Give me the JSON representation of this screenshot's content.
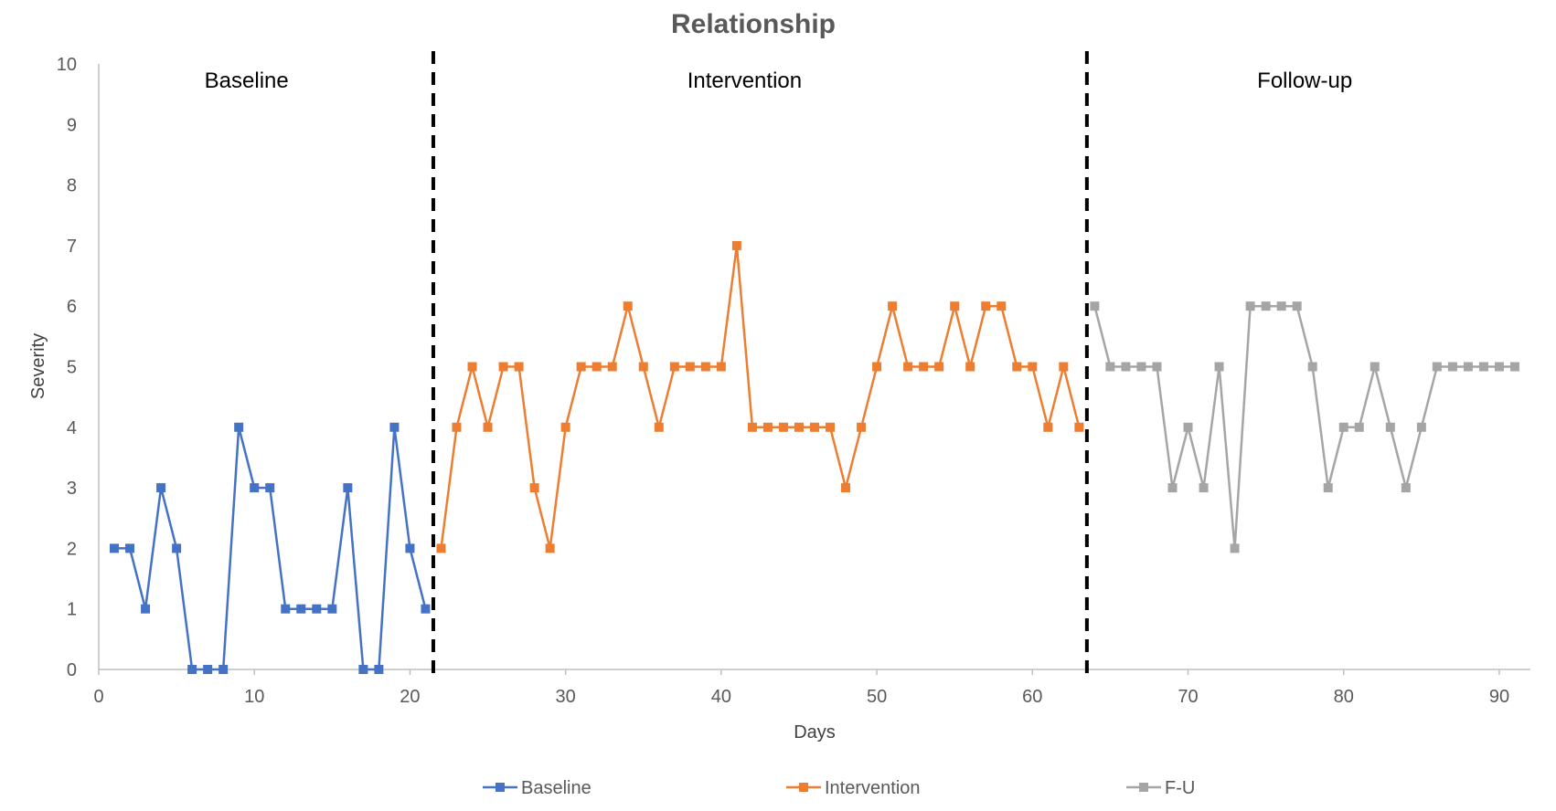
{
  "chart_data": {
    "type": "line",
    "title": "Relationship",
    "xlabel": "Days",
    "ylabel": "Severity",
    "xlim": [
      0,
      92
    ],
    "ylim": [
      0,
      10
    ],
    "xticks": [
      0,
      10,
      20,
      30,
      40,
      50,
      60,
      70,
      80,
      90
    ],
    "yticks": [
      0,
      1,
      2,
      3,
      4,
      5,
      6,
      7,
      8,
      9,
      10
    ],
    "grid": false,
    "legend_position": "bottom",
    "phase_lines": [
      21.5,
      63.5
    ],
    "annotations": [
      {
        "text": "Baseline",
        "x": 9.5,
        "y": 9.7
      },
      {
        "text": "Intervention",
        "x": 41.5,
        "y": 9.7
      },
      {
        "text": "Follow-up",
        "x": 77.5,
        "y": 9.7
      }
    ],
    "series": [
      {
        "name": "Baseline",
        "color": "#4472C4",
        "x": [
          1,
          2,
          3,
          4,
          5,
          6,
          7,
          8,
          9,
          10,
          11,
          12,
          13,
          14,
          15,
          16,
          17,
          18,
          19,
          20,
          21
        ],
        "values": [
          2,
          2,
          1,
          3,
          2,
          0,
          0,
          0,
          4,
          3,
          3,
          1,
          1,
          1,
          1,
          3,
          0,
          0,
          4,
          2,
          1
        ]
      },
      {
        "name": "Intervention",
        "color": "#ED7D31",
        "x": [
          22,
          23,
          24,
          25,
          26,
          27,
          28,
          29,
          30,
          31,
          32,
          33,
          34,
          35,
          36,
          37,
          38,
          39,
          40,
          41,
          42,
          43,
          44,
          45,
          46,
          47,
          48,
          49,
          50,
          51,
          52,
          53,
          54,
          55,
          56,
          57,
          58,
          59,
          60,
          61,
          62,
          63
        ],
        "values": [
          2,
          4,
          5,
          4,
          5,
          5,
          3,
          2,
          4,
          5,
          5,
          5,
          6,
          5,
          4,
          5,
          5,
          5,
          5,
          7,
          4,
          4,
          4,
          4,
          4,
          4,
          3,
          4,
          5,
          6,
          5,
          5,
          5,
          6,
          5,
          6,
          6,
          5,
          5,
          4,
          5,
          4
        ]
      },
      {
        "name": "F-U",
        "color": "#A5A5A5",
        "x": [
          64,
          65,
          66,
          67,
          68,
          69,
          70,
          71,
          72,
          73,
          74,
          75,
          76,
          77,
          78,
          79,
          80,
          81,
          82,
          83,
          84,
          85,
          86,
          87,
          88,
          89,
          90,
          91
        ],
        "values": [
          6,
          5,
          5,
          5,
          5,
          3,
          4,
          3,
          5,
          2,
          6,
          6,
          6,
          6,
          5,
          3,
          4,
          4,
          5,
          4,
          3,
          4,
          5,
          5,
          5,
          5,
          5,
          5
        ]
      }
    ]
  }
}
